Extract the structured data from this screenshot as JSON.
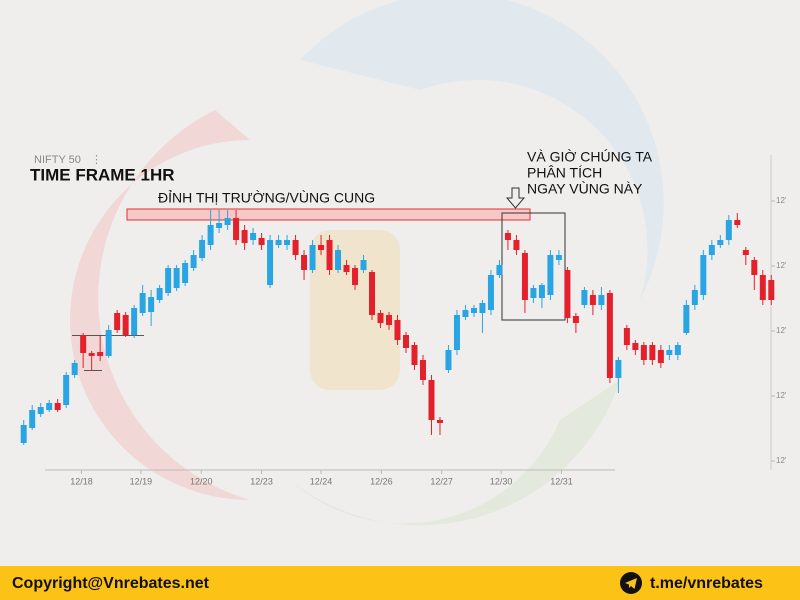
{
  "chart_data": {
    "type": "candlestick",
    "symbol": "NIFTY 50",
    "title": "TIME FRAME 1HR",
    "annotations": [
      "ĐỈNH THỊ TRƯỜNG/VÙNG CUNG",
      "VÀ GIỜ CHÚNG TA",
      "PHÂN TÍCH",
      "NGAY VÙNG NÀY"
    ],
    "up_color": "#2aa5e4",
    "down_color": "#e3202b",
    "xlim": [
      -0.2,
      88.2
    ],
    "xticks": [
      {
        "value": 6.8,
        "label": "12/18"
      },
      {
        "value": 13.8,
        "label": "12/19"
      },
      {
        "value": 20.9,
        "label": "12/20"
      },
      {
        "value": 28.0,
        "label": "12/23"
      },
      {
        "value": 35.0,
        "label": "12/24"
      },
      {
        "value": 42.1,
        "label": "12/26"
      },
      {
        "value": 49.2,
        "label": "12/27"
      },
      {
        "value": 56.2,
        "label": "12/30"
      },
      {
        "value": 63.3,
        "label": "12/31"
      }
    ],
    "ylim": [
      191,
      506
    ],
    "yticks": [
      {
        "value": 200,
        "label": "12'"
      },
      {
        "value": 265,
        "label": "12'"
      },
      {
        "value": 330,
        "label": "12'"
      },
      {
        "value": 395,
        "label": "12'"
      },
      {
        "value": 460,
        "label": "12'"
      }
    ],
    "open": [
      218,
      233,
      247,
      251,
      258,
      256,
      286,
      326,
      308,
      309,
      305,
      348,
      346,
      326,
      348,
      349,
      361,
      368,
      373,
      378,
      393,
      403,
      416,
      433,
      436,
      443,
      431,
      421,
      423,
      376,
      416,
      416,
      421,
      406,
      391,
      416,
      421,
      391,
      396,
      393,
      391,
      389,
      348,
      346,
      341,
      326,
      316,
      301,
      281,
      241,
      291,
      311,
      344,
      348,
      348,
      351,
      386,
      428,
      421,
      408,
      363,
      363,
      366,
      401,
      391,
      345,
      356,
      366,
      356,
      368,
      283,
      333,
      318,
      316,
      316,
      311,
      306,
      306,
      328,
      356,
      366,
      406,
      416,
      421,
      441,
      411,
      401,
      386,
      381
    ],
    "high": [
      241,
      256,
      258,
      261,
      262,
      289,
      301,
      328,
      310,
      325,
      336,
      351,
      349,
      356,
      376,
      371,
      376,
      396,
      396,
      401,
      411,
      426,
      451,
      451,
      451,
      451,
      436,
      433,
      428,
      426,
      426,
      426,
      426,
      411,
      421,
      426,
      426,
      416,
      401,
      396,
      406,
      391,
      351,
      349,
      346,
      329,
      319,
      306,
      286,
      244,
      316,
      351,
      356,
      356,
      361,
      391,
      401,
      431,
      426,
      411,
      376,
      378,
      411,
      411,
      394,
      348,
      374,
      371,
      374,
      371,
      304,
      336,
      321,
      319,
      319,
      316,
      316,
      319,
      361,
      376,
      411,
      421,
      426,
      446,
      448,
      414,
      404,
      391,
      386
    ],
    "low": [
      216,
      231,
      244,
      249,
      249,
      253,
      283,
      293,
      290,
      300,
      303,
      328,
      324,
      323,
      345,
      335,
      358,
      365,
      370,
      375,
      390,
      400,
      411,
      428,
      431,
      416,
      411,
      416,
      411,
      373,
      413,
      411,
      401,
      381,
      388,
      406,
      386,
      388,
      386,
      371,
      388,
      341,
      333,
      331,
      316,
      308,
      291,
      276,
      226,
      226,
      288,
      306,
      341,
      344,
      328,
      346,
      383,
      411,
      406,
      348,
      358,
      353,
      361,
      396,
      338,
      328,
      353,
      346,
      351,
      278,
      268,
      311,
      306,
      296,
      296,
      293,
      301,
      301,
      326,
      351,
      361,
      401,
      413,
      416,
      433,
      396,
      371,
      356,
      356
    ],
    "close": [
      236,
      251,
      254,
      258,
      251,
      286,
      298,
      308,
      305,
      305,
      331,
      331,
      326,
      353,
      368,
      364,
      373,
      393,
      393,
      398,
      406,
      421,
      436,
      438,
      443,
      421,
      418,
      428,
      416,
      421,
      421,
      421,
      406,
      391,
      416,
      411,
      391,
      411,
      389,
      376,
      401,
      346,
      338,
      336,
      321,
      313,
      296,
      281,
      241,
      238,
      311,
      346,
      351,
      353,
      358,
      386,
      396,
      421,
      411,
      361,
      373,
      376,
      406,
      406,
      343,
      338,
      371,
      356,
      366,
      283,
      301,
      316,
      311,
      301,
      301,
      298,
      311,
      316,
      356,
      371,
      406,
      416,
      421,
      441,
      436,
      406,
      386,
      361,
      361
    ]
  },
  "footer": {
    "copyright": "Copyright@Vnrebates.net",
    "telegram": "t.me/vnrebates"
  }
}
